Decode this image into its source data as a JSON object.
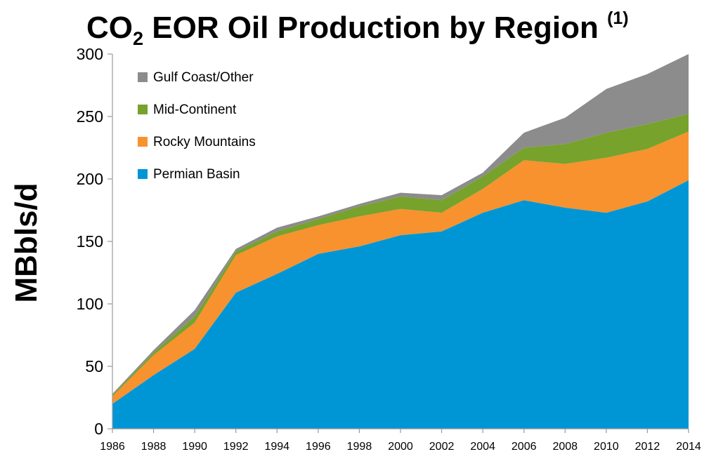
{
  "chart_data": {
    "type": "area",
    "stacked": true,
    "title": {
      "main_before_sub": "CO",
      "subscript": "2",
      "main_after_sub": " EOR Oil Production by Region ",
      "superscript": "(1)"
    },
    "ylabel": "MBbls/d",
    "xlabel": "",
    "ylim": [
      0,
      300
    ],
    "yticks": [
      0,
      50,
      100,
      150,
      200,
      250,
      300
    ],
    "x": [
      1986,
      1988,
      1990,
      1992,
      1994,
      1996,
      1998,
      2000,
      2002,
      2004,
      2006,
      2008,
      2010,
      2012,
      2014
    ],
    "legend_position": "top-left",
    "grid": false,
    "series": [
      {
        "name": "Permian Basin",
        "color": "#0096D6",
        "values": [
          20,
          43,
          64,
          109,
          124,
          140,
          146,
          155,
          158,
          173,
          183,
          177,
          173,
          182,
          199
        ]
      },
      {
        "name": "Rocky Mountains",
        "color": "#F7922E",
        "values": [
          6,
          16,
          21,
          30,
          30,
          23,
          24,
          21,
          15,
          19,
          32,
          35,
          44,
          42,
          39
        ]
      },
      {
        "name": "Mid-Continent",
        "color": "#77A22C",
        "values": [
          1,
          2,
          5,
          3,
          4,
          5,
          8,
          10,
          10,
          10,
          10,
          16,
          20,
          20,
          14
        ]
      },
      {
        "name": "Gulf Coast/Other",
        "color": "#8C8C8C",
        "values": [
          1,
          2,
          5,
          2,
          3,
          2,
          2,
          3,
          4,
          3,
          12,
          21,
          35,
          40,
          48
        ]
      }
    ]
  }
}
